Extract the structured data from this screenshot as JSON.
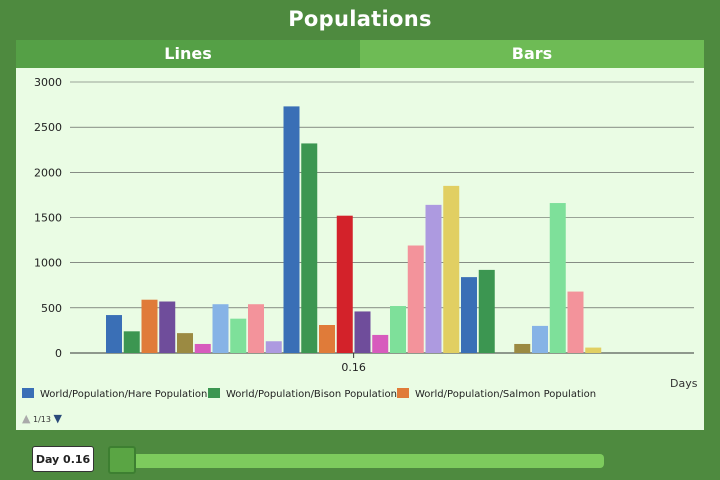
{
  "header": {
    "title": "Populations"
  },
  "tabs": [
    {
      "label": "Lines",
      "active": true
    },
    {
      "label": "Bars",
      "active": false
    }
  ],
  "chart_data": {
    "type": "bar",
    "x_categories": [
      "0.16"
    ],
    "xlabel": "Days",
    "ylabel": "",
    "ylim": [
      0,
      3000
    ],
    "yticks": [
      0,
      500,
      1000,
      1500,
      2000,
      2500,
      3000
    ],
    "grid": true,
    "values": [
      420,
      240,
      590,
      570,
      220,
      100,
      540,
      380,
      540,
      130,
      2730,
      2320,
      310,
      1520,
      460,
      200,
      520,
      1190,
      1640,
      1850,
      840,
      920,
      0,
      100,
      300,
      1660,
      680,
      60
    ],
    "colors": [
      "#3a6fb6",
      "#3c9651",
      "#e07b39",
      "#6f4d9b",
      "#9b8a42",
      "#d75bbd",
      "#86b3e6",
      "#7ee09a",
      "#f3939b",
      "#ad9ae0",
      "#3a6fb6",
      "#3c9651",
      "#e07b39",
      "#d3222a",
      "#6f4d9b",
      "#d75bbd",
      "#7ee09a",
      "#f3939b",
      "#ad9ae0",
      "#e1cf62",
      "#3a6fb6",
      "#3c9651",
      "#e07b39",
      "#9b8a42",
      "#86b3e6",
      "#7ee09a",
      "#f3939b",
      "#e1cf62"
    ]
  },
  "legend": {
    "items": [
      {
        "label": "World/Population/Hare Population",
        "color": "#3a6fb6"
      },
      {
        "label": "World/Population/Bison Population",
        "color": "#3c9651"
      },
      {
        "label": "World/Population/Salmon Population",
        "color": "#e07b39"
      }
    ],
    "pager": {
      "text": "1/13",
      "up_icon": "▲",
      "down_icon": "▼"
    }
  },
  "footer": {
    "day_label": "Day",
    "day_value": "0.16"
  }
}
